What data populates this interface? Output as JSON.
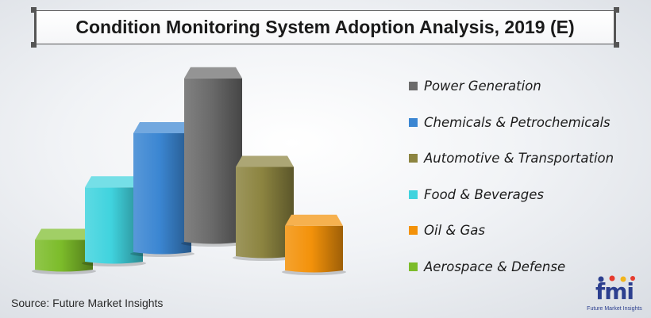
{
  "title": "Condition Monitoring System Adoption Analysis, 2019 (E)",
  "source": "Source: Future Market Insights",
  "logo": {
    "mark": "fmi",
    "tagline": "Future Market Insights"
  },
  "chart_data": {
    "type": "bar",
    "style": "3d-cylinder-columns",
    "categories": [
      "Aerospace & Defense",
      "Food & Beverages",
      "Chemicals & Petrochemicals",
      "Power Generation",
      "Automotive & Transportation",
      "Oil & Gas"
    ],
    "values": [
      1,
      2.5,
      4,
      5.5,
      3,
      1.5
    ],
    "ylim": [
      0,
      6
    ],
    "grid": false,
    "axes_shown": false,
    "value_scale_note": "relative heights only, no axis or data labels shown",
    "colors": {
      "Power Generation": "#6b6b6b",
      "Chemicals & Petrochemicals": "#3b86d2",
      "Automotive & Transportation": "#8c8440",
      "Food & Beverages": "#40d3de",
      "Oil & Gas": "#f3920a",
      "Aerospace & Defense": "#7cbc2a"
    },
    "legend_position": "right",
    "legend": [
      "Power Generation",
      "Chemicals & Petrochemicals",
      "Automotive & Transportation",
      "Food & Beverages",
      "Oil & Gas",
      "Aerospace & Defense"
    ]
  }
}
